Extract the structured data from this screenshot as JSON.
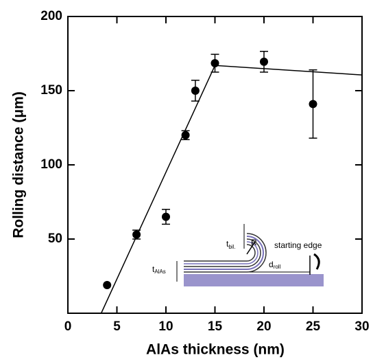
{
  "chart_data": {
    "type": "scatter",
    "x_label": "AlAs thickness (nm)",
    "y_label": "Rolling distance (μm)",
    "xlim": [
      0,
      30
    ],
    "ylim": [
      0,
      200
    ],
    "xticks": [
      0,
      5,
      10,
      15,
      20,
      25,
      30
    ],
    "yticks": [
      50,
      100,
      150,
      200
    ],
    "color": "#000000",
    "series": [
      {
        "x": [
          4,
          7,
          10,
          12,
          13,
          15,
          20,
          25
        ],
        "values": [
          19,
          53,
          65,
          120,
          150,
          168.5,
          169.5,
          141
        ],
        "errors": [
          null,
          3,
          5,
          3,
          7,
          6,
          7,
          23
        ]
      }
    ],
    "fit": {
      "x": [
        3.4,
        15,
        30
      ],
      "values": [
        0,
        167,
        160.6
      ]
    },
    "inset": {
      "t_bil": [
        "t",
        "bil."
      ],
      "radius": "R",
      "starting_edge": "starting edge",
      "d_roll": [
        "d",
        "roll"
      ],
      "t_alas": [
        "t",
        "AlAs"
      ]
    }
  }
}
